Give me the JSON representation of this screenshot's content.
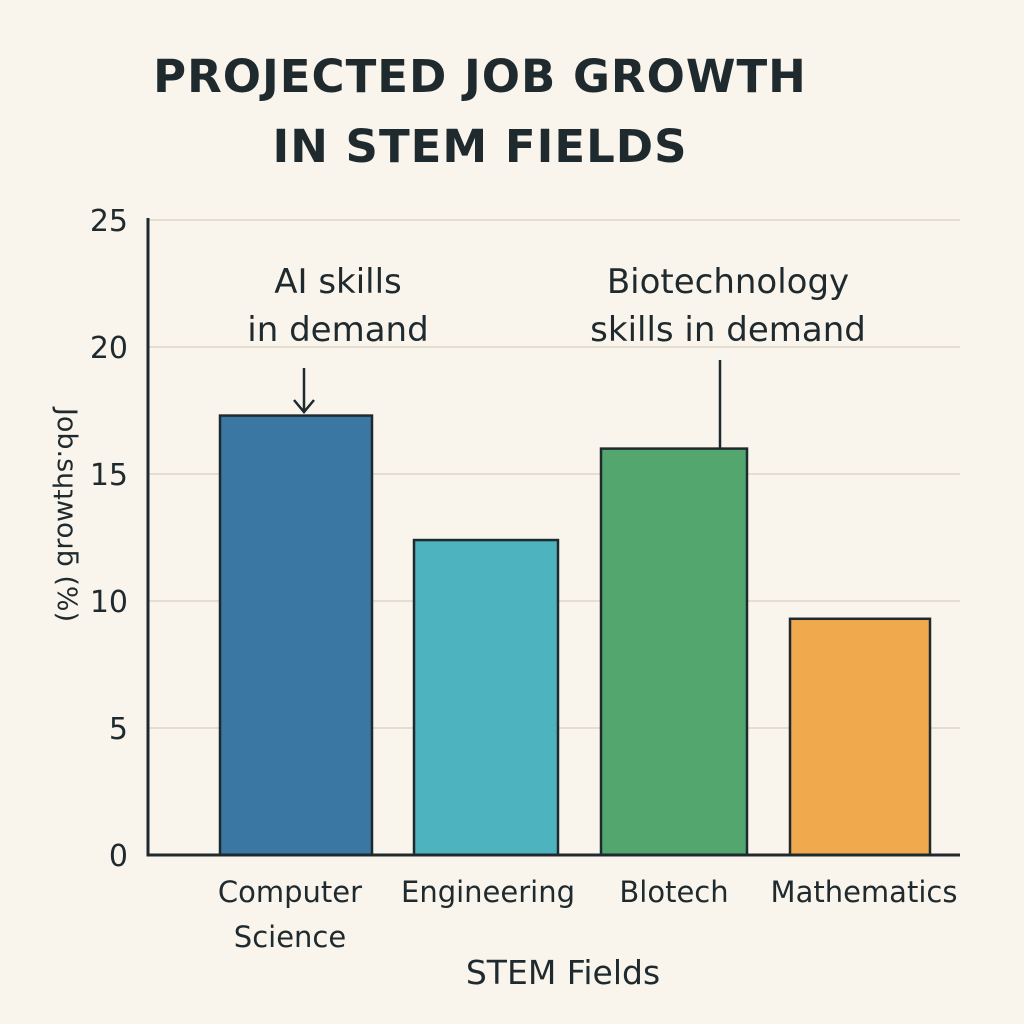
{
  "chart_data": {
    "type": "bar",
    "title_lines": [
      "PROJECTED JOB GROWTH",
      "IN STEM FIELDS"
    ],
    "xlabel": "STEM Fields",
    "ylabel": "Job.sɥʇʍoɹƃ (%)",
    "ylim": [
      0,
      25
    ],
    "yticks": [
      0,
      5,
      10,
      15,
      20,
      25
    ],
    "grid": true,
    "categories": [
      [
        "Computer",
        "Science"
      ],
      [
        "Engineering"
      ],
      [
        "Blotech"
      ],
      [
        "Mathematics"
      ]
    ],
    "values": [
      17.3,
      12.4,
      16.0,
      9.3
    ],
    "colors": [
      "#3a77a3",
      "#4db3bf",
      "#52a66e",
      "#f0a94c"
    ],
    "annotations": [
      {
        "text_lines": [
          "AI skills",
          "in demand"
        ],
        "category_index": 0,
        "style": "arrow"
      },
      {
        "text_lines": [
          "Biotechnology",
          "skills in demand"
        ],
        "category_index": 2,
        "style": "line"
      }
    ]
  }
}
